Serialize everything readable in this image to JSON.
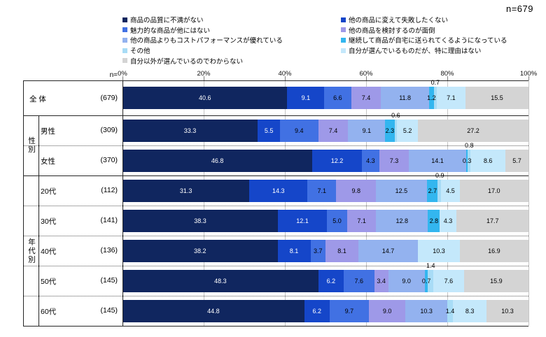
{
  "header": {
    "n_total": "n=679"
  },
  "axis": {
    "n_header": "n=",
    "ticks": [
      "0%",
      "20%",
      "40%",
      "60%",
      "80%",
      "100%"
    ]
  },
  "chart_data": {
    "type": "bar",
    "stacked": true,
    "orientation": "horizontal",
    "xlim": [
      0,
      100
    ],
    "grid": true,
    "series_names": [
      "商品の品質に不満がない",
      "他の商品に変えて失敗したくない",
      "魅力的な商品が他にはない",
      "他の商品を検討するのが面倒",
      "他の商品よりもコストパフォーマンスが優れている",
      "継続して商品が自宅に送られてくるようになっている",
      "その他",
      "自分が選んでいるものだが、特に理由はない",
      "自分以外が選んでいるのでわからない"
    ],
    "series_colors": [
      "#10265f",
      "#1546c9",
      "#4171e3",
      "#9e99e8",
      "#93b2ef",
      "#33b6ef",
      "#a8dcf6",
      "#c4e8fb",
      "#d4d4d4"
    ],
    "legend_columns": [
      [
        0,
        2,
        4,
        6,
        8
      ],
      [
        1,
        3,
        5,
        7
      ]
    ],
    "groups": [
      {
        "label": "",
        "rows": [
          {
            "label": "全 体",
            "n": "(679)",
            "values": [
              40.6,
              9.1,
              6.6,
              7.4,
              11.8,
              1.2,
              0.7,
              7.1,
              15.5
            ]
          }
        ]
      },
      {
        "label": "性別",
        "rows": [
          {
            "label": "男性",
            "n": "(309)",
            "values": [
              33.3,
              5.5,
              9.4,
              7.4,
              9.1,
              2.3,
              0.6,
              5.2,
              27.2
            ]
          },
          {
            "label": "女性",
            "n": "(370)",
            "values": [
              46.8,
              12.2,
              4.3,
              7.3,
              14.1,
              0.3,
              0.8,
              8.6,
              5.7
            ]
          }
        ]
      },
      {
        "label": "年代別",
        "rows": [
          {
            "label": "20代",
            "n": "(112)",
            "values": [
              31.3,
              14.3,
              7.1,
              9.8,
              12.5,
              2.7,
              0.9,
              4.5,
              17.0
            ]
          },
          {
            "label": "30代",
            "n": "(141)",
            "values": [
              38.3,
              12.1,
              5.0,
              7.1,
              12.8,
              2.8,
              0,
              4.3,
              17.7
            ]
          },
          {
            "label": "40代",
            "n": "(136)",
            "values": [
              38.2,
              8.1,
              3.7,
              8.1,
              14.7,
              0,
              0,
              10.3,
              16.9
            ]
          },
          {
            "label": "50代",
            "n": "(145)",
            "values": [
              48.3,
              6.2,
              7.6,
              3.4,
              9.0,
              0.7,
              1.4,
              7.6,
              15.9
            ]
          },
          {
            "label": "60代",
            "n": "(145)",
            "values": [
              44.8,
              6.2,
              9.7,
              9.0,
              10.3,
              0,
              1.4,
              8.3,
              10.3
            ]
          }
        ]
      }
    ]
  }
}
